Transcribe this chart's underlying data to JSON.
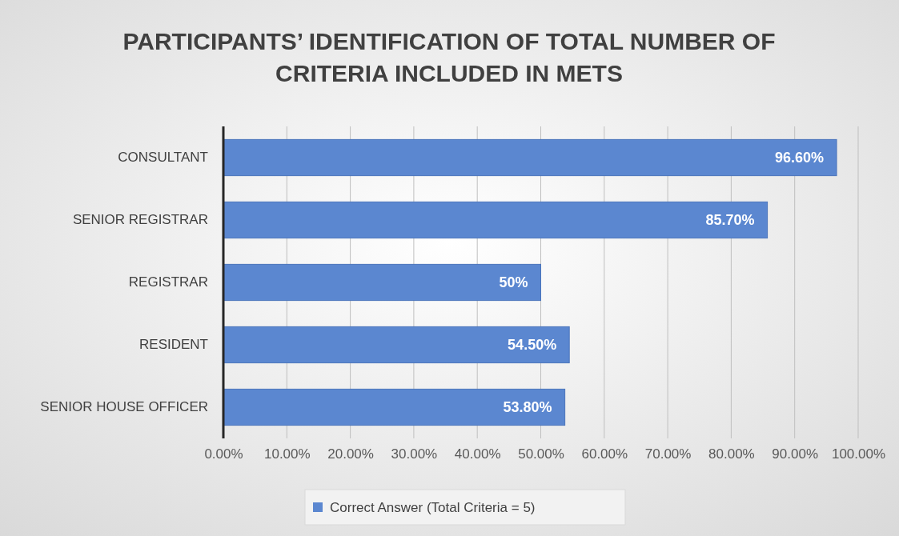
{
  "chart_data": {
    "type": "bar",
    "orientation": "horizontal",
    "title": "PARTICIPANTS’ IDENTIFICATION OF TOTAL NUMBER OF CRITERIA INCLUDED IN METS",
    "categories": [
      "CONSULTANT",
      "SENIOR REGISTRAR",
      "REGISTRAR",
      "RESIDENT",
      "SENIOR HOUSE OFFICER"
    ],
    "series": [
      {
        "name": "Correct Answer (Total Criteria = 5)",
        "color": "#5b87d0",
        "values": [
          96.6,
          85.7,
          50,
          54.5,
          53.8
        ],
        "value_labels": [
          "96.60%",
          "85.70%",
          "50%",
          "54.50%",
          "53.80%"
        ]
      }
    ],
    "xlim": [
      0,
      100
    ],
    "xticks": [
      {
        "value": 0,
        "label": "0.00%"
      },
      {
        "value": 10,
        "label": "10.00%"
      },
      {
        "value": 20,
        "label": "20.00%"
      },
      {
        "value": 30,
        "label": "30.00%"
      },
      {
        "value": 40,
        "label": "40.00%"
      },
      {
        "value": 50,
        "label": "50.00%"
      },
      {
        "value": 60,
        "label": "60.00%"
      },
      {
        "value": 70,
        "label": "70.00%"
      },
      {
        "value": 80,
        "label": "80.00%"
      },
      {
        "value": 90,
        "label": "90.00%"
      },
      {
        "value": 100,
        "label": "100.00%"
      }
    ],
    "grid": "x",
    "legend": "bottom"
  }
}
